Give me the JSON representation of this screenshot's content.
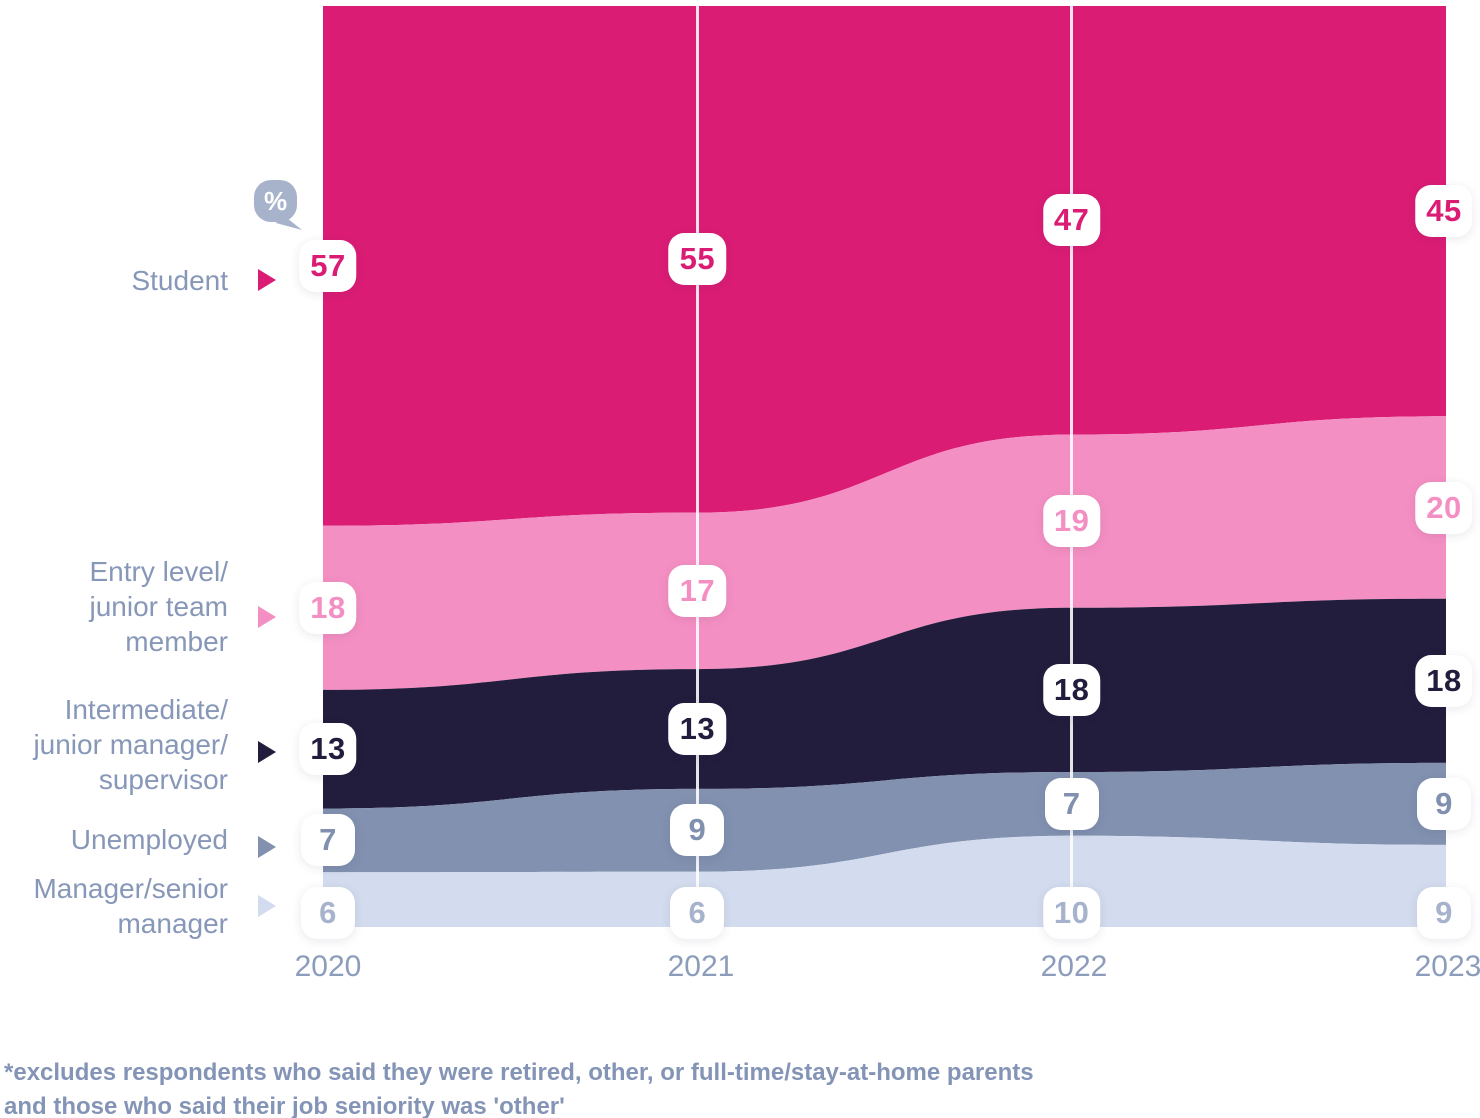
{
  "icon": {
    "name": "percent-bubble",
    "glyph": "%",
    "color": "#A7B3CB"
  },
  "chart_data": {
    "type": "area",
    "stacked": true,
    "unit": "%",
    "categories": [
      "2020",
      "2021",
      "2022",
      "2023"
    ],
    "series": [
      {
        "name": "Student",
        "label_lines": [
          "Student"
        ],
        "color": "#DB1C74",
        "value_color": "#DB1C74",
        "values": [
          57,
          55,
          47,
          45
        ]
      },
      {
        "name": "Entry level/junior team member",
        "label_lines": [
          "Entry level/",
          "junior team",
          "member"
        ],
        "color": "#F48FC3",
        "value_color": "#F48FC3",
        "values": [
          18,
          17,
          19,
          20
        ]
      },
      {
        "name": "Intermediate/junior manager/supervisor",
        "label_lines": [
          "Intermediate/",
          "junior manager/",
          "supervisor"
        ],
        "color": "#221D3D",
        "value_color": "#221D3D",
        "values": [
          13,
          13,
          18,
          18
        ]
      },
      {
        "name": "Unemployed",
        "label_lines": [
          "Unemployed"
        ],
        "color": "#8191AF",
        "value_color": "#8090AE",
        "values": [
          7,
          9,
          7,
          9
        ]
      },
      {
        "name": "Manager/senior manager",
        "label_lines": [
          "Manager/senior",
          "manager"
        ],
        "color": "#D3DCEE",
        "value_color": "#A7B3CD",
        "values": [
          6,
          6,
          10,
          9
        ]
      }
    ],
    "legend_position": "left",
    "gridlines": "vertical white lines at each year",
    "ylim": [
      0,
      100
    ]
  },
  "footnote_lines": [
    "*excludes respondents who said they were retired, other, or full-time/stay-at-home parents",
    "and those who said their job seniority was 'other'"
  ]
}
